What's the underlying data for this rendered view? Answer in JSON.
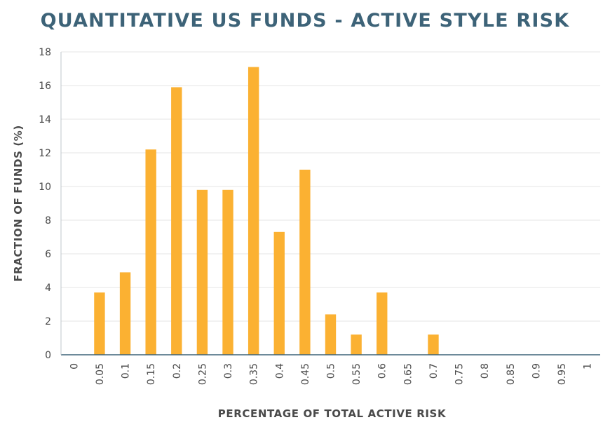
{
  "chart_data": {
    "type": "bar",
    "title": "QUANTITATIVE US FUNDS - ACTIVE STYLE RISK",
    "xlabel": "PERCENTAGE OF TOTAL ACTIVE RISK",
    "ylabel": "FRACTION OF FUNDS (%)",
    "categories": [
      "0",
      "0.05",
      "0.1",
      "0.15",
      "0.2",
      "0.25",
      "0.3",
      "0.35",
      "0.4",
      "0.45",
      "0.5",
      "0.55",
      "0.6",
      "0.65",
      "0.7",
      "0.75",
      "0.8",
      "0.85",
      "0.9",
      "0.95",
      "1"
    ],
    "values": [
      0,
      3.7,
      4.9,
      12.2,
      15.9,
      9.8,
      9.8,
      17.1,
      7.3,
      11.0,
      2.4,
      1.2,
      3.7,
      0,
      1.2,
      0,
      0,
      0,
      0,
      0,
      0
    ],
    "yticks": [
      "0",
      "2",
      "4",
      "6",
      "8",
      "10",
      "12",
      "14",
      "16",
      "18"
    ],
    "ylim": [
      0,
      18
    ],
    "grid": true,
    "bar_color": "#fbb132",
    "axis_color": "#3d6378",
    "grid_color": "#e4e4e4"
  }
}
